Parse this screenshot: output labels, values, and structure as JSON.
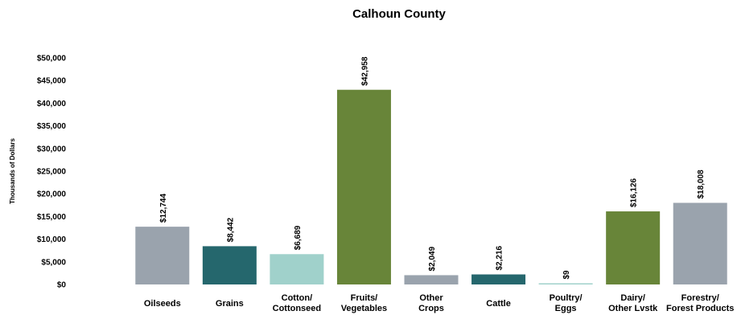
{
  "chart_data": {
    "type": "bar",
    "title": "Calhoun County",
    "ylabel": "Thousands  of Dollars",
    "xlabel": "",
    "ylim": [
      0,
      50000
    ],
    "y_ticks": [
      "$0",
      "$5,000",
      "$10,000",
      "$15,000",
      "$20,000",
      "$25,000",
      "$30,000",
      "$35,000",
      "$40,000",
      "$45,000",
      "$50,000"
    ],
    "y_tick_values": [
      0,
      5000,
      10000,
      15000,
      20000,
      25000,
      30000,
      35000,
      40000,
      45000,
      50000
    ],
    "grid": false,
    "categories": [
      [
        "Oilseeds"
      ],
      [
        "Grains"
      ],
      [
        "Cotton/",
        "Cottonseed"
      ],
      [
        "Fruits/",
        "Vegetables"
      ],
      [
        "Other",
        "Crops"
      ],
      [
        "Cattle"
      ],
      [
        "Poultry/",
        "Eggs"
      ],
      [
        "Dairy/",
        "Other Lvstk"
      ],
      [
        "Forestry/",
        "Forest Products"
      ]
    ],
    "values": [
      12744,
      8442,
      6689,
      42958,
      2049,
      2216,
      9,
      16126,
      18008
    ],
    "data_labels": [
      "$12,744",
      "$8,442",
      "$6,689",
      "$42,958",
      "$2,049",
      "$2,216",
      "$9",
      "$16,126",
      "$18,008"
    ],
    "colors": [
      "#9aa3ad",
      "#25676d",
      "#a0d1cb",
      "#688539",
      "#9aa3ad",
      "#25676d",
      "#a0d1cb",
      "#688539",
      "#9aa3ad"
    ]
  }
}
